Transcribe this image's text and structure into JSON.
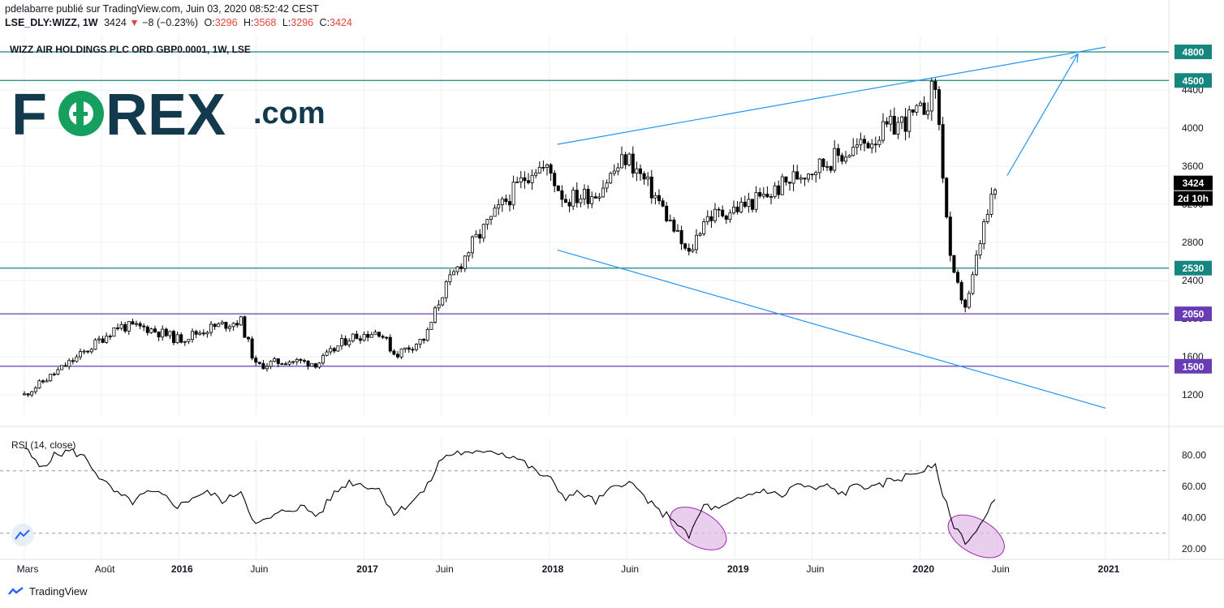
{
  "header": {
    "published": "pdelabarre publié sur TradingView.com, Juin 03, 2020 08:52:42 CEST",
    "symbol_tf": "LSE_DLY:WIZZ, 1W",
    "last": "3424",
    "change": "−8 (−0.23%)",
    "o_label": "O:",
    "o": "3296",
    "h_label": "H:",
    "h": "3568",
    "l_label": "L:",
    "l": "3296",
    "c_label": "C:",
    "c": "3424"
  },
  "watermark": "WIZZ AIR HOLDINGS PLC ORD GBP0.0001, 1W, LSE",
  "logo": {
    "left": "F",
    "o": "O",
    "right": "REX",
    "dot": ".com"
  },
  "footer": {
    "brand": "TradingView"
  },
  "colors": {
    "teal": "#15877f",
    "purple": "#6a3cb4",
    "blue_line": "#2196f3",
    "ellipse_fill": "#e1bee7",
    "ellipse_stroke": "#9c27b0",
    "logo_navy": "#123a4c",
    "logo_green": "#15a05f"
  },
  "chart_data": [
    {
      "type": "candlestick",
      "title": "WIZZ AIR HOLDINGS PLC ORD GBP0.0001, 1W, LSE",
      "x_axis_ticks": [
        "Mars",
        "Août",
        "2016",
        "Juin",
        "2017",
        "Juin",
        "2018",
        "Juin",
        "2019",
        "Juin",
        "2020",
        "Juin",
        "2021"
      ],
      "y_axis_ticks": [
        1200,
        1600,
        2000,
        2400,
        2800,
        3200,
        3600,
        4000,
        4400
      ],
      "ylim": [
        1000,
        4950
      ],
      "close_path": [
        [
          "2015-03",
          1200
        ],
        [
          "2015-05",
          1430
        ],
        [
          "2015-07",
          1660
        ],
        [
          "2015-09",
          1920
        ],
        [
          "2015-11",
          1900
        ],
        [
          "2016-01",
          1780
        ],
        [
          "2016-03",
          1900
        ],
        [
          "2016-05",
          1980
        ],
        [
          "2016-06",
          1500
        ],
        [
          "2016-08",
          1560
        ],
        [
          "2016-10",
          1530
        ],
        [
          "2016-12",
          1800
        ],
        [
          "2017-02",
          1870
        ],
        [
          "2017-03",
          1620
        ],
        [
          "2017-05",
          1800
        ],
        [
          "2017-06",
          2250
        ],
        [
          "2017-08",
          2780
        ],
        [
          "2017-10",
          3200
        ],
        [
          "2017-12",
          3600
        ],
        [
          "2018-01",
          3550
        ],
        [
          "2018-02",
          3250
        ],
        [
          "2018-04",
          3320
        ],
        [
          "2018-06",
          3700
        ],
        [
          "2018-08",
          3250
        ],
        [
          "2018-10",
          2650
        ],
        [
          "2018-11",
          3050
        ],
        [
          "2019-01",
          3150
        ],
        [
          "2019-03",
          3280
        ],
        [
          "2019-05",
          3500
        ],
        [
          "2019-07",
          3650
        ],
        [
          "2019-09",
          3800
        ],
        [
          "2019-11",
          4000
        ],
        [
          "2020-01",
          4150
        ],
        [
          "2020-02",
          4450
        ],
        [
          "2020-03",
          2500
        ],
        [
          "2020-04",
          2100
        ],
        [
          "2020-05",
          2900
        ],
        [
          "2020-06",
          3424
        ]
      ],
      "horizontal_levels": [
        {
          "value": 4800,
          "color": "teal"
        },
        {
          "value": 4500,
          "color": "teal"
        },
        {
          "value": 2530,
          "color": "teal"
        },
        {
          "value": 2050,
          "color": "purple"
        },
        {
          "value": 1500,
          "color": "purple"
        }
      ],
      "trendlines": [
        {
          "from": [
            "2018-01",
            3830
          ],
          "to": [
            "2021-01",
            4850
          ]
        },
        {
          "from": [
            "2018-01",
            2720
          ],
          "to": [
            "2021-01",
            1060
          ]
        }
      ],
      "arrow": {
        "from": [
          "2020-06",
          3500
        ],
        "to": [
          "2020-12",
          4780
        ]
      },
      "price_tag": {
        "value": 3424,
        "label": "3424",
        "countdown": "2d 10h"
      }
    },
    {
      "type": "line",
      "title": "RSI (14, close)",
      "y_axis_ticks": [
        "20.00",
        "40.00",
        "60.00",
        "80.00"
      ],
      "ylim": [
        15,
        90
      ],
      "bands": [
        70,
        30
      ],
      "series": [
        {
          "values": [
            [
              "2015-03",
              85
            ],
            [
              "2015-04",
              72
            ],
            [
              "2015-05",
              80
            ],
            [
              "2015-06",
              83
            ],
            [
              "2015-07",
              78
            ],
            [
              "2015-08",
              64
            ],
            [
              "2015-09",
              55
            ],
            [
              "2015-10",
              50
            ],
            [
              "2015-11",
              56
            ],
            [
              "2015-12",
              54
            ],
            [
              "2016-01",
              47
            ],
            [
              "2016-02",
              54
            ],
            [
              "2016-03",
              56
            ],
            [
              "2016-04",
              50
            ],
            [
              "2016-05",
              58
            ],
            [
              "2016-06",
              35
            ],
            [
              "2016-07",
              40
            ],
            [
              "2016-08",
              45
            ],
            [
              "2016-09",
              47
            ],
            [
              "2016-10",
              41
            ],
            [
              "2016-11",
              55
            ],
            [
              "2016-12",
              63
            ],
            [
              "2017-01",
              61
            ],
            [
              "2017-02",
              58
            ],
            [
              "2017-03",
              42
            ],
            [
              "2017-04",
              50
            ],
            [
              "2017-05",
              58
            ],
            [
              "2017-06",
              78
            ],
            [
              "2017-07",
              82
            ],
            [
              "2017-08",
              80
            ],
            [
              "2017-09",
              84
            ],
            [
              "2017-10",
              81
            ],
            [
              "2017-11",
              78
            ],
            [
              "2017-12",
              70
            ],
            [
              "2018-01",
              65
            ],
            [
              "2018-02",
              53
            ],
            [
              "2018-03",
              56
            ],
            [
              "2018-04",
              50
            ],
            [
              "2018-05",
              58
            ],
            [
              "2018-06",
              64
            ],
            [
              "2018-07",
              55
            ],
            [
              "2018-08",
              44
            ],
            [
              "2018-09",
              40
            ],
            [
              "2018-10",
              27
            ],
            [
              "2018-11",
              48
            ],
            [
              "2018-12",
              45
            ],
            [
              "2019-01",
              50
            ],
            [
              "2019-02",
              55
            ],
            [
              "2019-03",
              58
            ],
            [
              "2019-04",
              53
            ],
            [
              "2019-05",
              62
            ],
            [
              "2019-06",
              58
            ],
            [
              "2019-07",
              60
            ],
            [
              "2019-08",
              55
            ],
            [
              "2019-09",
              62
            ],
            [
              "2019-10",
              58
            ],
            [
              "2019-11",
              64
            ],
            [
              "2019-12",
              66
            ],
            [
              "2020-01",
              70
            ],
            [
              "2020-02",
              72
            ],
            [
              "2020-03",
              38
            ],
            [
              "2020-04",
              24
            ],
            [
              "2020-05",
              36
            ],
            [
              "2020-06",
              54
            ]
          ]
        }
      ],
      "highlights": [
        {
          "center": [
            "2018-10",
            33
          ]
        },
        {
          "center": [
            "2020-04",
            28
          ]
        }
      ]
    }
  ]
}
